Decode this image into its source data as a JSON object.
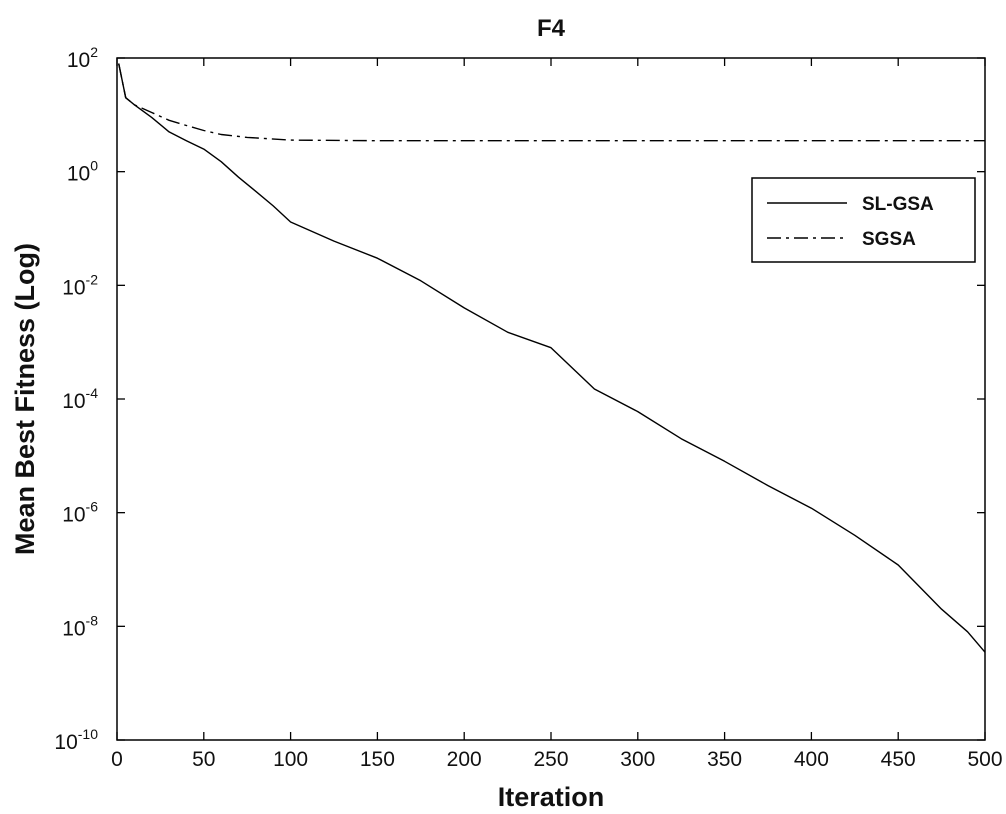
{
  "chart_data": {
    "type": "line",
    "title": "F4",
    "xlabel": "Iteration",
    "ylabel": "Mean Best Fitness (Log)",
    "xlim": [
      0,
      500
    ],
    "ylim_log10": [
      -10,
      2
    ],
    "y_scale": "log",
    "grid": false,
    "legend_position": "upper-right",
    "x_ticks": [
      "0",
      "50",
      "100",
      "150",
      "200",
      "250",
      "300",
      "350",
      "400",
      "450",
      "500"
    ],
    "y_ticks": [
      {
        "base": "10",
        "exp": "2"
      },
      {
        "base": "10",
        "exp": "0"
      },
      {
        "base": "10",
        "exp": "-2"
      },
      {
        "base": "10",
        "exp": "-4"
      },
      {
        "base": "10",
        "exp": "-6"
      },
      {
        "base": "10",
        "exp": "-8"
      },
      {
        "base": "10",
        "exp": "-10"
      }
    ],
    "series": [
      {
        "name": "SL-GSA",
        "line_style": "solid",
        "color": "#000000",
        "x": [
          1,
          5,
          10,
          20,
          30,
          40,
          50,
          60,
          70,
          80,
          90,
          100,
          125,
          150,
          175,
          200,
          225,
          250,
          275,
          300,
          325,
          350,
          375,
          400,
          425,
          450,
          475,
          490,
          500
        ],
        "y": [
          80,
          20,
          15,
          9,
          5,
          3.5,
          2.5,
          1.5,
          0.8,
          0.45,
          0.25,
          0.13,
          0.06,
          0.03,
          0.012,
          0.004,
          0.0015,
          0.0008,
          0.00015,
          6e-05,
          2e-05,
          8e-06,
          3e-06,
          1.2e-06,
          4e-07,
          1.2e-07,
          2e-08,
          8e-09,
          3.5e-09
        ]
      },
      {
        "name": "SGSA",
        "line_style": "dash-dot",
        "color": "#000000",
        "x": [
          1,
          5,
          10,
          20,
          30,
          40,
          50,
          60,
          75,
          100,
          150,
          200,
          300,
          400,
          500
        ],
        "y": [
          80,
          20,
          15,
          11,
          8,
          6.5,
          5.3,
          4.5,
          4,
          3.6,
          3.5,
          3.5,
          3.5,
          3.5,
          3.5
        ]
      }
    ]
  }
}
